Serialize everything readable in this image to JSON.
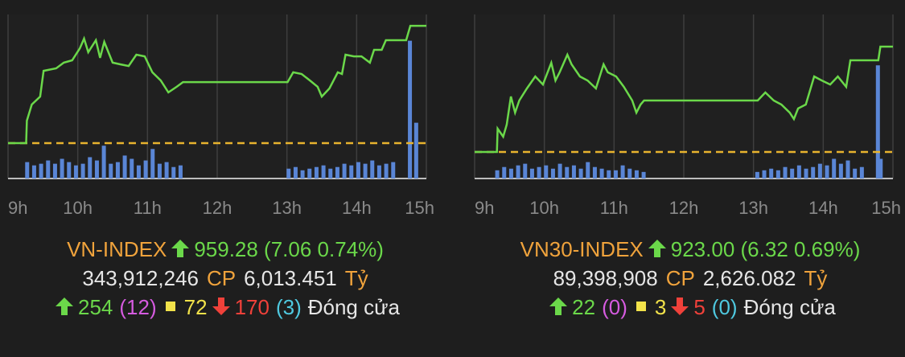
{
  "chart_data": [
    {
      "type": "line",
      "xlim": [
        9,
        15
      ],
      "ylim": [
        950.09,
        959.96
      ],
      "y2lim": [
        0,
        100
      ],
      "grid": true,
      "xticks": [
        {
          "value": 9,
          "label": "9h"
        },
        {
          "value": 10,
          "label": "10h"
        },
        {
          "value": 11,
          "label": "11h"
        },
        {
          "value": 12,
          "label": "12h"
        },
        {
          "value": 13,
          "label": "13h"
        },
        {
          "value": 14,
          "label": "14h"
        },
        {
          "value": 15,
          "label": "15h"
        }
      ],
      "reference": 952.22,
      "reference_color": "#e8b32e",
      "series": [
        {
          "color": "#6bd84a",
          "x": [
            9.0,
            9.26,
            9.27,
            9.34,
            9.46,
            9.51,
            9.69,
            9.8,
            9.92,
            10.03,
            10.09,
            10.15,
            10.26,
            10.32,
            10.38,
            10.5,
            10.61,
            10.73,
            10.84,
            10.96,
            11.07,
            11.19,
            11.3,
            11.42,
            11.51,
            13.01,
            13.09,
            13.21,
            13.33,
            13.44,
            13.5,
            13.61,
            13.73,
            13.79,
            13.84,
            13.96,
            14.07,
            14.19,
            14.25,
            14.36,
            14.42,
            14.54,
            14.71,
            14.77,
            15.0
          ],
          "values": [
            952.22,
            952.22,
            953.57,
            954.54,
            955.02,
            956.57,
            956.72,
            957.06,
            957.2,
            957.93,
            958.51,
            957.69,
            958.41,
            957.35,
            958.31,
            957.06,
            956.96,
            956.86,
            957.54,
            957.44,
            956.48,
            955.99,
            955.27,
            955.61,
            955.89,
            955.89,
            956.48,
            956.38,
            955.99,
            955.61,
            955.02,
            955.51,
            956.48,
            956.38,
            957.54,
            957.44,
            957.44,
            957.06,
            957.83,
            957.83,
            958.41,
            958.41,
            958.41,
            959.28,
            959.28
          ]
        },
        {
          "type": "bar",
          "axis": "y2",
          "color": "#5a86d6",
          "x": [
            9.28,
            9.38,
            9.48,
            9.58,
            9.68,
            9.78,
            9.88,
            9.98,
            10.08,
            10.18,
            10.28,
            10.38,
            10.48,
            10.58,
            10.68,
            10.78,
            10.88,
            10.98,
            11.08,
            11.18,
            11.28,
            11.38,
            11.48,
            13.03,
            13.13,
            13.23,
            13.33,
            13.43,
            13.53,
            13.63,
            13.73,
            13.83,
            13.93,
            14.03,
            14.13,
            14.23,
            14.33,
            14.43,
            14.53,
            14.77,
            14.86
          ],
          "values": [
            10,
            8,
            9,
            11,
            9,
            12,
            10,
            8,
            9,
            13,
            11,
            20,
            9,
            10,
            14,
            12,
            8,
            11,
            18,
            9,
            10,
            7,
            8,
            6,
            7,
            5,
            6,
            7,
            8,
            6,
            7,
            9,
            8,
            10,
            9,
            11,
            8,
            9,
            10,
            84,
            34
          ]
        }
      ],
      "summary": {
        "name": "VN-INDEX",
        "quote": "959.28 (7.06 0.74%)",
        "volume": "343,912,246",
        "volume_unit": "CP",
        "value": "6,013.451",
        "value_unit": "Tỷ",
        "advances": "254",
        "ceiling": "(12)",
        "unchanged": "72",
        "declines": "170",
        "floor": "(3)",
        "status": "Đóng cửa"
      }
    },
    {
      "type": "line",
      "xlim": [
        9,
        15
      ],
      "ylim": [
        915.09,
        924.93
      ],
      "y2lim": [
        0,
        100
      ],
      "grid": true,
      "xticks": [
        {
          "value": 9,
          "label": "9h"
        },
        {
          "value": 10,
          "label": "10h"
        },
        {
          "value": 11,
          "label": "11h"
        },
        {
          "value": 12,
          "label": "12h"
        },
        {
          "value": 13,
          "label": "13h"
        },
        {
          "value": 14,
          "label": "14h"
        },
        {
          "value": 15,
          "label": "15h"
        }
      ],
      "reference": 916.68,
      "reference_color": "#e8b32e",
      "series": [
        {
          "color": "#6bd84a",
          "x": [
            9.0,
            9.32,
            9.33,
            9.41,
            9.46,
            9.52,
            9.58,
            9.64,
            9.75,
            9.87,
            9.98,
            10.1,
            10.16,
            10.22,
            10.33,
            10.39,
            10.51,
            10.62,
            10.74,
            10.85,
            10.91,
            11.03,
            11.14,
            11.26,
            11.32,
            11.38,
            11.43,
            13.06,
            13.17,
            13.29,
            13.4,
            13.52,
            13.58,
            13.64,
            13.75,
            13.87,
            13.98,
            14.1,
            14.21,
            14.33,
            14.39,
            14.5,
            14.79,
            14.82,
            15.0
          ],
          "values": [
            916.68,
            916.68,
            918.08,
            917.6,
            918.32,
            920.01,
            919.04,
            919.77,
            920.49,
            921.21,
            920.73,
            922.03,
            920.97,
            921.46,
            922.52,
            921.94,
            921.21,
            920.97,
            920.49,
            921.94,
            921.46,
            921.21,
            920.59,
            919.77,
            919.04,
            919.53,
            919.77,
            919.77,
            920.25,
            919.77,
            919.53,
            919.04,
            918.66,
            919.29,
            919.53,
            921.21,
            920.97,
            920.73,
            921.21,
            920.59,
            922.18,
            922.18,
            922.18,
            923.0,
            923.0
          ]
        },
        {
          "type": "bar",
          "axis": "y2",
          "color": "#5a86d6",
          "x": [
            9.33,
            9.43,
            9.53,
            9.63,
            9.73,
            9.83,
            9.93,
            10.03,
            10.13,
            10.23,
            10.33,
            10.43,
            10.53,
            10.63,
            10.73,
            10.83,
            10.93,
            11.03,
            11.13,
            11.23,
            11.33,
            11.43,
            13.06,
            13.16,
            13.26,
            13.36,
            13.46,
            13.56,
            13.66,
            13.76,
            13.86,
            13.96,
            14.06,
            14.16,
            14.26,
            14.36,
            14.46,
            14.56,
            14.79,
            14.83
          ],
          "values": [
            5,
            7,
            6,
            8,
            9,
            6,
            7,
            8,
            6,
            9,
            7,
            8,
            6,
            10,
            7,
            6,
            5,
            5,
            8,
            6,
            5,
            4,
            4,
            5,
            6,
            5,
            7,
            6,
            8,
            6,
            7,
            9,
            8,
            12,
            9,
            11,
            6,
            7,
            69,
            12
          ]
        }
      ],
      "summary": {
        "name": "VN30-INDEX",
        "quote": "923.00 (6.32 0.69%)",
        "volume": "89,398,908",
        "volume_unit": "CP",
        "value": "2,626.082",
        "value_unit": "Tỷ",
        "advances": "22",
        "ceiling": "(0)",
        "unchanged": "3",
        "declines": "5",
        "floor": "(0)",
        "status": "Đóng cửa"
      }
    }
  ]
}
